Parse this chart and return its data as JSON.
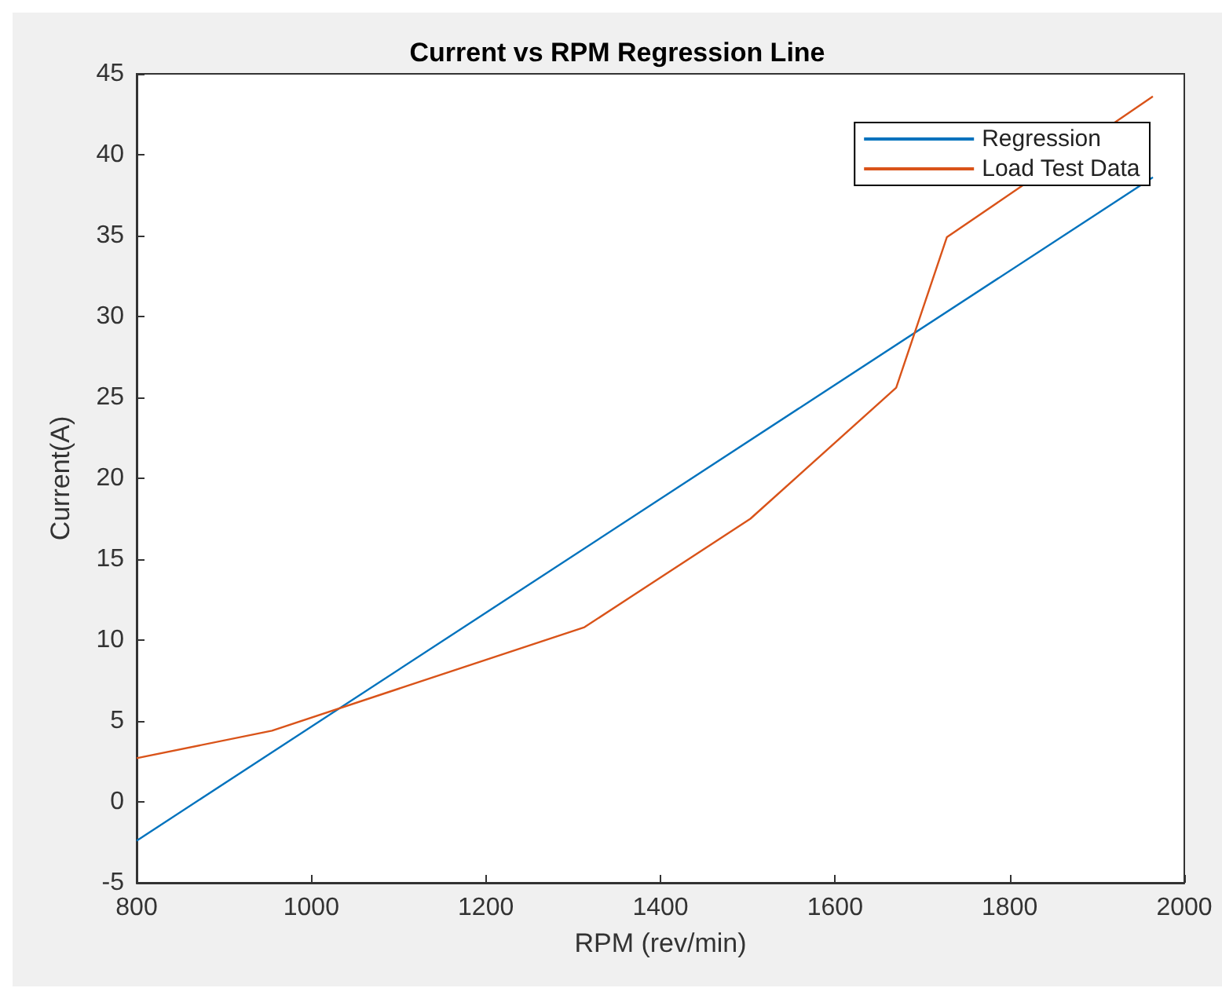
{
  "chart_data": {
    "type": "line",
    "title": "Current vs RPM Regression Line",
    "xlabel": "RPM (rev/min)",
    "ylabel": "Current(A)",
    "xlim": [
      800,
      2000
    ],
    "xticks": [
      800,
      1000,
      1200,
      1400,
      1600,
      1800,
      2000
    ],
    "ylim": [
      -5,
      45
    ],
    "yticks": [
      -5,
      0,
      5,
      10,
      15,
      20,
      25,
      30,
      35,
      40,
      45
    ],
    "grid": false,
    "legend": "top right",
    "line_style": "solid",
    "marker": "none",
    "series": [
      {
        "name": "Regression",
        "color": "#0072bd",
        "x": [
          800,
          1964
        ],
        "values": [
          -2.4,
          38.6
        ]
      },
      {
        "name": "Load Test Data",
        "color": "#d95319",
        "x": [
          800,
          955,
          1313,
          1503,
          1670,
          1728,
          1964
        ],
        "values": [
          2.7,
          4.4,
          10.8,
          17.5,
          25.6,
          34.9,
          43.6
        ]
      }
    ]
  }
}
